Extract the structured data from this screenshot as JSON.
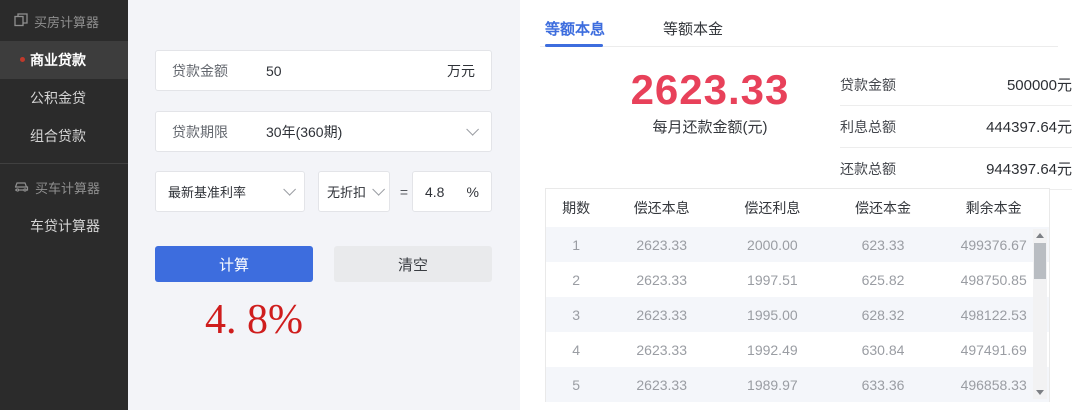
{
  "colors": {
    "accent_blue": "#3d6dde",
    "payment_red": "#e8415a",
    "rate_red": "#cf1d1d",
    "sidebar_bg": "#2b2b2b"
  },
  "sidebar": {
    "sections": [
      {
        "header": "买房计算器",
        "icon": "house-calculator-icon",
        "items": [
          {
            "label": "商业贷款",
            "active": true
          },
          {
            "label": "公积金贷",
            "active": false
          },
          {
            "label": "组合贷款",
            "active": false
          }
        ]
      },
      {
        "header": "买车计算器",
        "icon": "car-calculator-icon",
        "items": [
          {
            "label": "车贷计算器",
            "active": false
          }
        ]
      }
    ]
  },
  "form": {
    "loan_amount": {
      "label": "贷款金额",
      "value": "50",
      "unit": "万元"
    },
    "loan_term": {
      "label": "贷款期限",
      "value": "30年(360期)"
    },
    "rate": {
      "base": "最新基准利率",
      "discount": "无折扣",
      "equals": "=",
      "value": "4.8",
      "unit": "%"
    },
    "calc_button": "计算",
    "clear_button": "清空",
    "rate_display": "4. 8%"
  },
  "result": {
    "tabs": [
      {
        "label": "等额本息",
        "active": true
      },
      {
        "label": "等额本金",
        "active": false
      }
    ],
    "monthly_payment": "2623.33",
    "monthly_payment_caption": "每月还款金额(元)",
    "summary": [
      {
        "label": "贷款金额",
        "value": "500000元"
      },
      {
        "label": "利息总额",
        "value": "444397.64元"
      },
      {
        "label": "还款总额",
        "value": "944397.64元"
      }
    ],
    "table": {
      "headers": [
        "期数",
        "偿还本息",
        "偿还利息",
        "偿还本金",
        "剩余本金"
      ],
      "rows": [
        [
          "1",
          "2623.33",
          "2000.00",
          "623.33",
          "499376.67"
        ],
        [
          "2",
          "2623.33",
          "1997.51",
          "625.82",
          "498750.85"
        ],
        [
          "3",
          "2623.33",
          "1995.00",
          "628.32",
          "498122.53"
        ],
        [
          "4",
          "2623.33",
          "1992.49",
          "630.84",
          "497491.69"
        ],
        [
          "5",
          "2623.33",
          "1989.97",
          "633.36",
          "496858.33"
        ]
      ]
    }
  }
}
